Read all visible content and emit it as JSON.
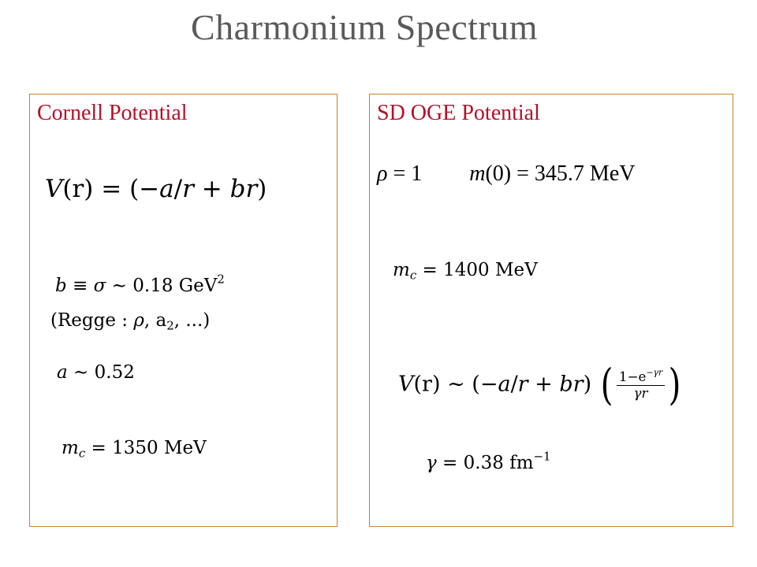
{
  "slide": {
    "title": "Charmonium Spectrum"
  },
  "left_panel": {
    "heading": "Cornell Potential",
    "potential": {
      "lhs": "V",
      "arg": "(r)",
      "eq": " = ",
      "rhs_open": "(−",
      "a": "a",
      "slash": "/",
      "r": "r",
      "plus": " + ",
      "br": "br",
      "rhs_close": ")"
    },
    "string_tension": {
      "b": "b",
      "rel": " ≡ ",
      "sigma": "σ",
      "sim": " ∼ ",
      "value": "0.18",
      "unit": " GeV",
      "exp": "2"
    },
    "regge": {
      "open": "(Regge : ",
      "rho": "ρ",
      "sep": ",  a",
      "sub": "2",
      "rest": ", ...)"
    },
    "coupling": {
      "a": "a",
      "sim": " ∼ ",
      "value": "0.52"
    },
    "charm_mass": {
      "m": "m",
      "sub": "c",
      "eq": " = ",
      "value": "1350",
      "unit": " MeV"
    }
  },
  "right_panel": {
    "heading": "SD OGE Potential",
    "params": {
      "rho": "ρ",
      "rho_value": " = 1",
      "m": "m",
      "m_arg": "(0) = 345.7 MeV"
    },
    "charm_mass": {
      "m": "m",
      "sub": "c",
      "eq": " = ",
      "value": "1400",
      "unit": " MeV"
    },
    "potential": {
      "lhs": "V",
      "arg": "(r)",
      "sim": " ∼ ",
      "rhs_open": "(−",
      "a": "a",
      "slash": "/",
      "r": "r",
      "plus": " + ",
      "br": "br",
      "rhs_close": ")",
      "paren_open": "(",
      "num": "1−e",
      "num_exp": "−γr",
      "den": "γr",
      "paren_close": ")"
    },
    "gamma": {
      "gamma": "γ",
      "eq": " = ",
      "value": "0.38",
      "unit": " fm",
      "exp": "−1"
    }
  }
}
